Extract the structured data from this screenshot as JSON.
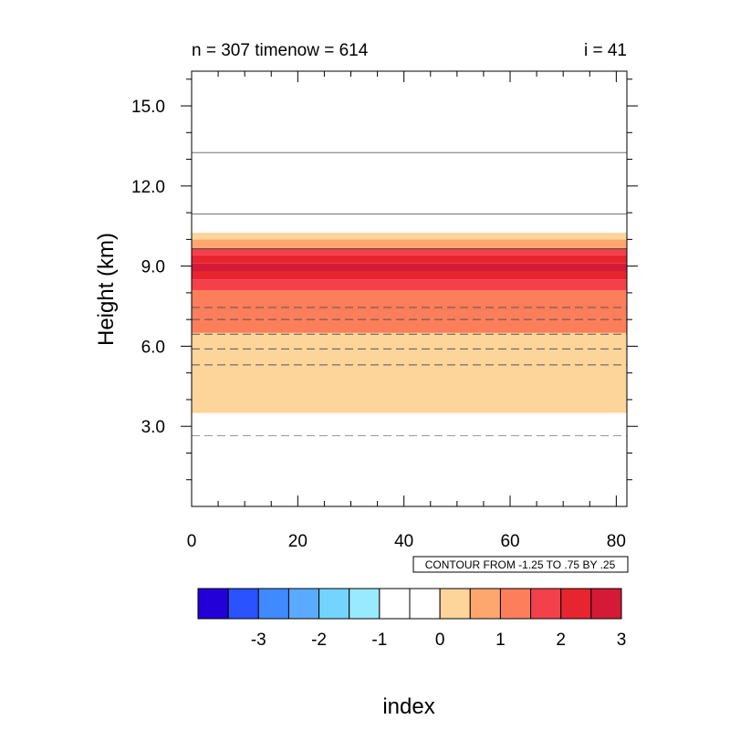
{
  "chart_data": {
    "type": "contour",
    "title_left": "n = 307 timenow = 614",
    "title_right": "i = 41",
    "xlabel": "index",
    "ylabel": "Height (km)",
    "xlim": [
      0,
      82
    ],
    "ylim": [
      0,
      16.3
    ],
    "x_ticks": [
      0,
      20,
      40,
      60,
      80
    ],
    "x_tick_labels": [
      "0",
      "20",
      "40",
      "60",
      "80"
    ],
    "y_ticks": [
      3,
      6,
      9,
      12,
      15
    ],
    "y_tick_labels": [
      "3.0",
      "6.0",
      "9.0",
      "12.0",
      "15.0"
    ],
    "info_label": "CONTOUR FROM -1.25 TO .75 BY .25",
    "filled_bands": [
      {
        "y0": 3.5,
        "y1": 6.5,
        "color": "#fdd59a"
      },
      {
        "y0": 6.5,
        "y1": 8.1,
        "color": "#fd7e5a"
      },
      {
        "y0": 8.1,
        "y1": 8.5,
        "color": "#f3404a"
      },
      {
        "y0": 8.5,
        "y1": 8.8,
        "color": "#e8252f"
      },
      {
        "y0": 8.8,
        "y1": 9.1,
        "color": "#d41a36"
      },
      {
        "y0": 9.1,
        "y1": 9.4,
        "color": "#e8252f"
      },
      {
        "y0": 9.4,
        "y1": 9.65,
        "color": "#f3404a"
      },
      {
        "y0": 9.65,
        "y1": 10.0,
        "color": "#fda76e"
      },
      {
        "y0": 10.0,
        "y1": 10.25,
        "color": "#fdd59a"
      }
    ],
    "contour_lines": [
      {
        "y": 2.65,
        "style": "dashed",
        "color": "#999999"
      },
      {
        "y": 5.3,
        "style": "dashed",
        "color": "#555555"
      },
      {
        "y": 5.9,
        "style": "dashed",
        "color": "#555555"
      },
      {
        "y": 6.45,
        "style": "dashed",
        "color": "#555555"
      },
      {
        "y": 7.0,
        "style": "dashed",
        "color": "#555555"
      },
      {
        "y": 7.45,
        "style": "dashed",
        "color": "#555555"
      },
      {
        "y": 9.65,
        "style": "solid",
        "color": "#444444"
      },
      {
        "y": 10.95,
        "style": "solid",
        "color": "#777777"
      },
      {
        "y": 13.25,
        "style": "solid",
        "color": "#777777"
      }
    ],
    "colorbar": {
      "colors": [
        "#2300d8",
        "#2a52ff",
        "#3f8aff",
        "#5aabff",
        "#73d4ff",
        "#9aeaff",
        "#ffffff",
        "#ffffff",
        "#fdd59a",
        "#fda76e",
        "#fd7e5a",
        "#f3404a",
        "#e8252f",
        "#d41a36"
      ],
      "tick_labels": [
        "-3",
        "-2",
        "-1",
        "0",
        "1",
        "2",
        "3"
      ]
    }
  }
}
